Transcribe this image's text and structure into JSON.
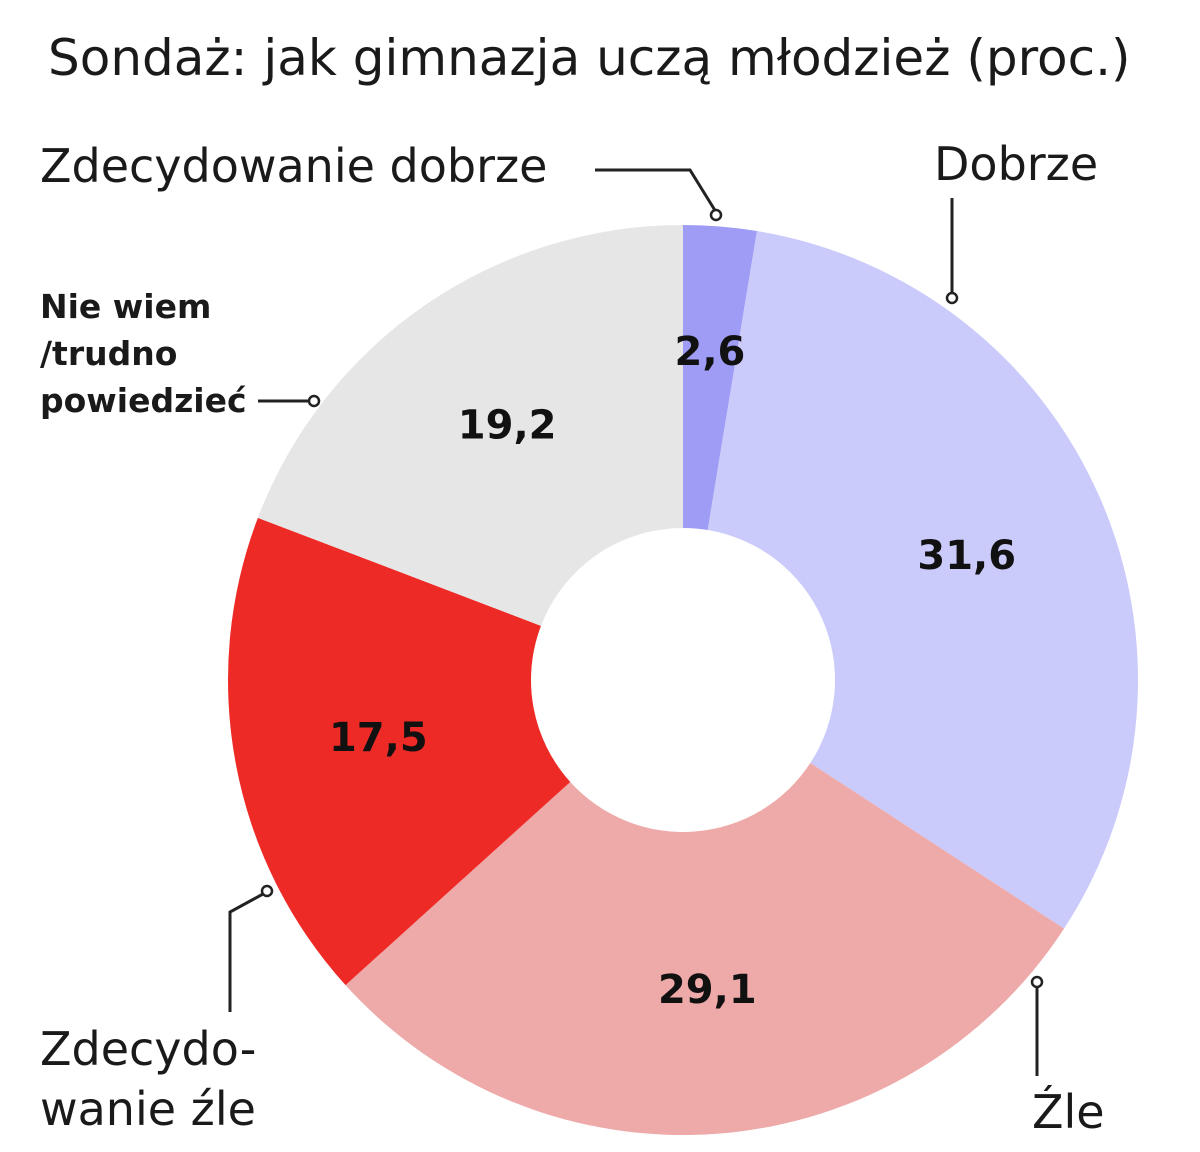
{
  "chart_data": {
    "type": "pie",
    "title": "Sondaż: jak gimnazja uczą młodzież (proc.)",
    "categories": [
      "Zdecydowanie dobrze",
      "Dobrze",
      "Źle",
      "Zdecydowanie źle",
      "Nie wiem /trudno powiedzieć"
    ],
    "values": [
      2.6,
      31.6,
      29.1,
      17.5,
      19.2
    ],
    "value_labels": [
      "2,6",
      "31,6",
      "29,1",
      "17,5",
      "19,2"
    ],
    "colors": [
      "#9f9cf5",
      "#cbcbfb",
      "#eea9a9",
      "#ee2a26",
      "#e6e6e6"
    ],
    "donut": true
  },
  "labels": {
    "zdecydowanie_dobrze": "Zdecydowanie dobrze",
    "dobrze": "Dobrze",
    "nie_wiem": [
      "Nie wiem",
      "/trudno",
      "powiedzieć"
    ],
    "zdecydowanie_zle": [
      "Zdecydo-",
      "wanie źle"
    ],
    "zle": "Źle"
  }
}
